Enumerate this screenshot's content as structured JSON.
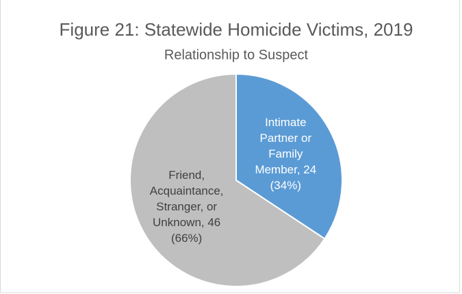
{
  "chart_data": {
    "type": "pie",
    "title": "Figure 21: Statewide Homicide Victims, 2019",
    "subtitle": "Relationship to Suspect",
    "values": [
      24,
      46
    ],
    "value_labels": [
      "Intimate Partner or Family Member, 24 (34%)",
      "Friend, Acquaintance, Stranger, or Unknown, 46 (66%)"
    ],
    "colors": [
      "#5b9bd5",
      "#bfbfbf"
    ],
    "label_colors": [
      "#ffffff",
      "#404040"
    ]
  }
}
